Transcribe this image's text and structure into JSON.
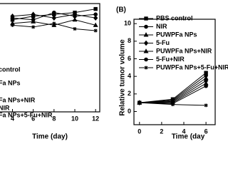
{
  "chart_data": [
    {
      "type": "line",
      "xlabel": "Time (day)",
      "x": [
        4,
        6,
        8,
        10,
        12
      ],
      "xlim": [
        2.8,
        12.4
      ],
      "xticks": [
        4,
        6,
        8,
        10,
        12
      ],
      "ylim": [
        0,
        30
      ],
      "series": [
        {
          "name": "control",
          "color": "#000000",
          "marker": "square",
          "values": [
            25.5,
            26.5,
            27,
            27.5,
            28.5
          ]
        },
        {
          "name": "Fa NPs",
          "color": "#000000",
          "marker": "circle",
          "values": [
            26,
            25.5,
            27.5,
            26.5,
            27
          ]
        },
        {
          "name": "Fa NPs+NIR",
          "color": "#000000",
          "marker": "triangle",
          "values": [
            24.5,
            25,
            24,
            25.5,
            24
          ]
        },
        {
          "name": "NIR",
          "color": "#000000",
          "marker": "diamond",
          "values": [
            26.5,
            27,
            26,
            27,
            26
          ]
        },
        {
          "name": "Fa NPs+5-Fu+NIR",
          "color": "#000000",
          "marker": "star",
          "values": [
            24,
            23.5,
            24.5,
            23,
            22.5
          ]
        }
      ]
    },
    {
      "type": "line",
      "title": "(B)",
      "xlabel": "Time (day",
      "ylabel": "Relative tumor volume",
      "x": [
        0,
        3,
        6
      ],
      "xlim": [
        -0.5,
        6.7
      ],
      "xticks": [
        0,
        2,
        4,
        6
      ],
      "ylim": [
        -1.5,
        10.5
      ],
      "yticks": [
        0,
        2,
        4,
        6,
        8,
        10
      ],
      "series": [
        {
          "name": "PBS control",
          "color": "#000000",
          "marker": "square",
          "values": [
            1,
            1.4,
            4.4
          ]
        },
        {
          "name": "NIR",
          "color": "#000000",
          "marker": "circle",
          "values": [
            1,
            1.3,
            4.1
          ]
        },
        {
          "name": "PUWPFa NPs",
          "color": "#000000",
          "marker": "triangle",
          "values": [
            1,
            1.2,
            3.8
          ]
        },
        {
          "name": "5-Fu",
          "color": "#000000",
          "marker": "diamond",
          "values": [
            1,
            1.1,
            3.5
          ]
        },
        {
          "name": "PUWPFa NPs+NIR",
          "color": "#000000",
          "marker": "triangle",
          "values": [
            1,
            1.0,
            3.2
          ]
        },
        {
          "name": "5-Fu+NIR",
          "color": "#000000",
          "marker": "circle",
          "values": [
            1,
            0.9,
            2.9
          ]
        },
        {
          "name": "PUWPFa NPs+5-Fu+NIR",
          "color": "#000000",
          "marker": "star",
          "values": [
            1,
            0.8,
            0.7
          ]
        }
      ]
    }
  ]
}
